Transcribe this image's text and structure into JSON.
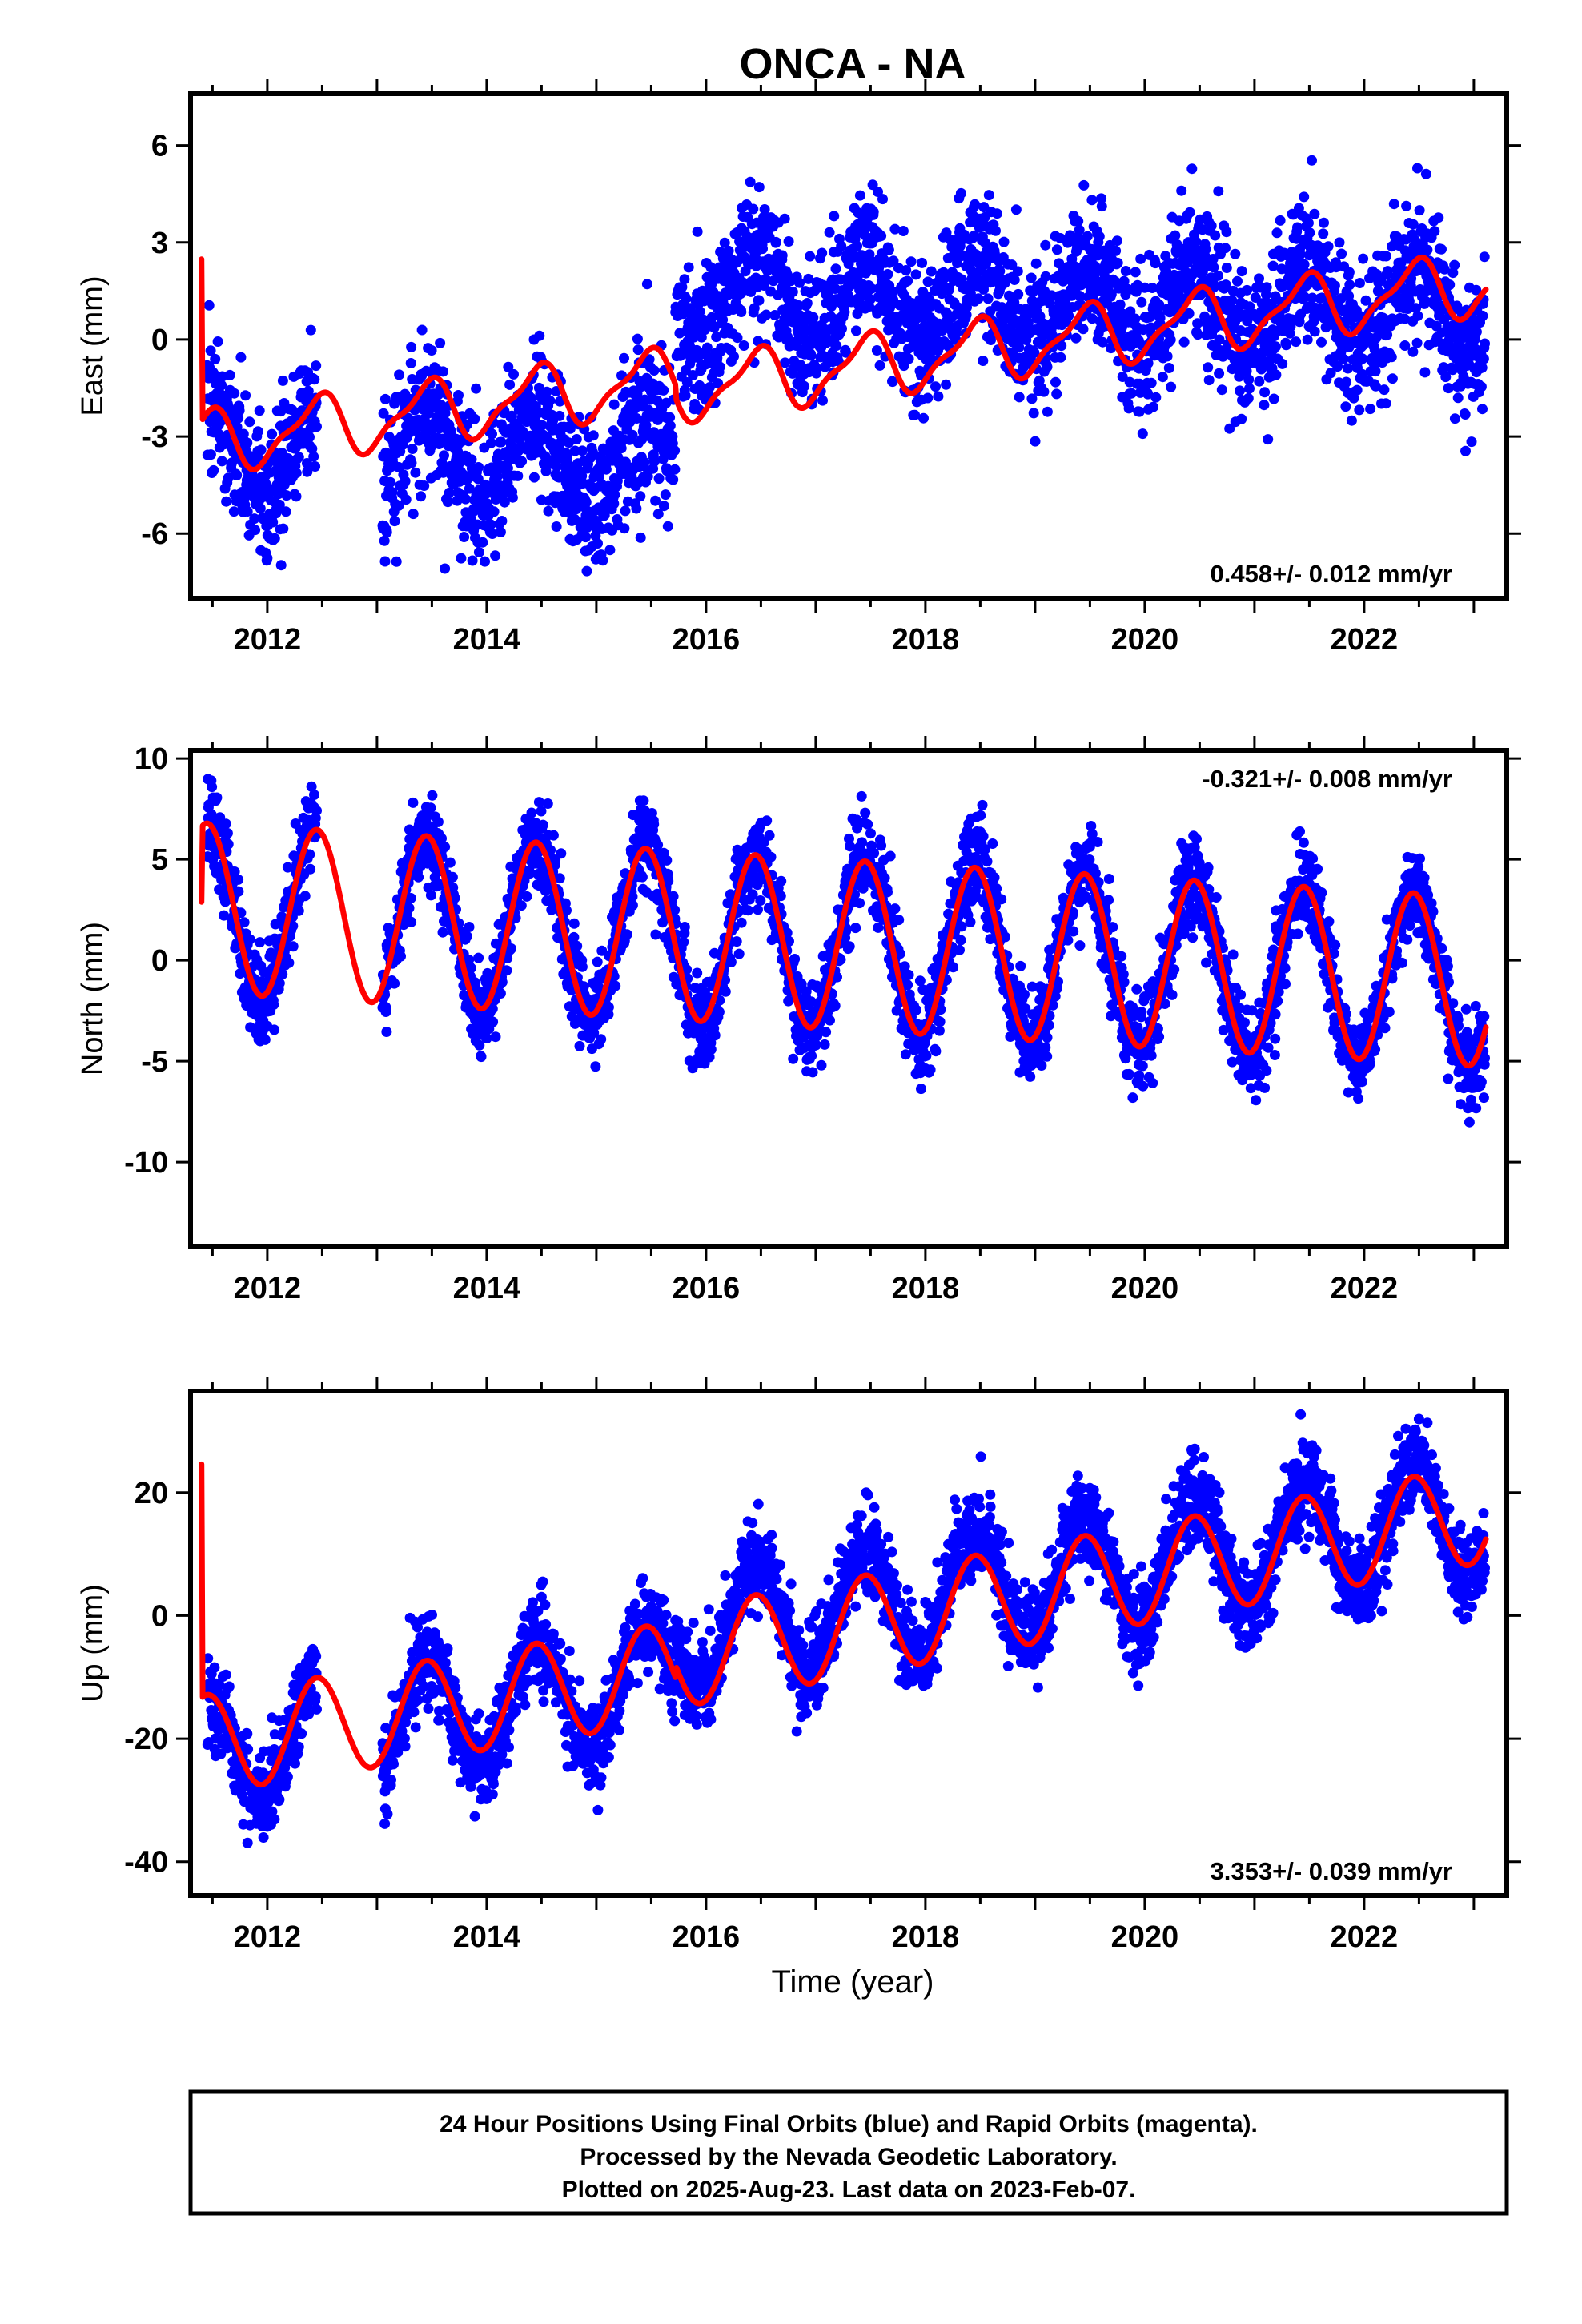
{
  "title": "ONCA - NA",
  "x_axis_label": "Time (year)",
  "footnote_lines": [
    "24 Hour Positions Using Final Orbits (blue) and Rapid Orbits (magenta).",
    "Processed by the Nevada Geodetic Laboratory.",
    "Plotted on 2025-Aug-23. Last data on 2023-Feb-07."
  ],
  "colors": {
    "final_orbit_points": "#0000ff",
    "fit_line": "#ff0000",
    "frame": "#000000"
  },
  "chart_data": [
    {
      "type": "scatter",
      "component": "East",
      "ylabel": "East (mm)",
      "xlim": [
        2011.3,
        2023.3
      ],
      "ylim": [
        -8,
        7.6
      ],
      "x_ticks": [
        2012,
        2014,
        2016,
        2018,
        2020,
        2022
      ],
      "y_ticks": [
        -6,
        -3,
        0,
        3,
        6
      ],
      "rate_label": "0.458+/- 0.012 mm/yr",
      "rate_position": "bottom-right",
      "data_range": [
        2011.45,
        2023.1
      ],
      "gaps": [
        [
          2012.45,
          2013.05
        ]
      ],
      "series": [
        {
          "name": "Final Orbits",
          "style": "points",
          "segments": [
            {
              "x0": 2011.4,
              "x1": 2015.72,
              "y0": -3.3,
              "y1": -3.7
            },
            {
              "x0": 2015.72,
              "x1": 2023.2,
              "y0": 1.3,
              "y1": 0.9
            }
          ],
          "seasonal_amplitude": 1.3,
          "scatter": 1.1
        },
        {
          "name": "Fit",
          "style": "line",
          "segments": [
            {
              "x0": 2011.4,
              "x1": 2015.72,
              "y0": -3.2,
              "y1": -1.2
            },
            {
              "x0": 2015.72,
              "x1": 2023.2,
              "y0": -1.6,
              "y1": 1.8
            }
          ],
          "seasonal_amplitude": 0.9,
          "semiannual_amplitude": 0.3
        }
      ]
    },
    {
      "type": "scatter",
      "component": "North",
      "ylabel": "North (mm)",
      "xlim": [
        2011.3,
        2023.3
      ],
      "ylim": [
        -14.2,
        10.4
      ],
      "x_ticks": [
        2012,
        2014,
        2016,
        2018,
        2020,
        2022
      ],
      "y_ticks": [
        -10,
        -5,
        0,
        5,
        10
      ],
      "rate_label": "-0.321+/- 0.008 mm/yr",
      "rate_position": "top-right",
      "data_range": [
        2011.45,
        2023.1
      ],
      "gaps": [
        [
          2012.45,
          2013.05
        ]
      ],
      "series": [
        {
          "name": "Final Orbits",
          "style": "points",
          "segments": [
            {
              "x0": 2011.4,
              "x1": 2023.2,
              "y0": 2.6,
              "y1": -1.1
            }
          ],
          "seasonal_amplitude": 4.3,
          "scatter": 1.1
        },
        {
          "name": "Fit",
          "style": "line",
          "segments": [
            {
              "x0": 2011.4,
              "x1": 2023.2,
              "y0": 2.6,
              "y1": -1.1
            }
          ],
          "seasonal_amplitude": 4.2,
          "semiannual_amplitude": 0.0
        }
      ]
    },
    {
      "type": "scatter",
      "component": "Up",
      "ylabel": "Up (mm)",
      "xlim": [
        2011.3,
        2023.3
      ],
      "ylim": [
        -45.5,
        36.5
      ],
      "x_ticks": [
        2012,
        2014,
        2016,
        2018,
        2020,
        2022
      ],
      "y_ticks": [
        -40,
        -20,
        0,
        20
      ],
      "rate_label": "3.353+/- 0.039 mm/yr",
      "rate_position": "bottom-right",
      "data_range": [
        2011.45,
        2023.1
      ],
      "gaps": [
        [
          2012.45,
          2013.05
        ]
      ],
      "series": [
        {
          "name": "Final Orbits",
          "style": "points",
          "segments": [
            {
              "x0": 2011.4,
              "x1": 2015.72,
              "y0": -22,
              "y1": -10
            },
            {
              "x0": 2015.72,
              "x1": 2023.2,
              "y0": -3,
              "y1": 17
            }
          ],
          "seasonal_amplitude": 9.5,
          "scatter": 3.6
        },
        {
          "name": "Fit",
          "style": "line",
          "segments": [
            {
              "x0": 2011.4,
              "x1": 2015.72,
              "y0": -21,
              "y1": -9
            },
            {
              "x0": 2015.72,
              "x1": 2023.2,
              "y0": -7,
              "y1": 17
            }
          ],
          "seasonal_amplitude": 8.0,
          "semiannual_amplitude": 0.0
        }
      ]
    }
  ]
}
